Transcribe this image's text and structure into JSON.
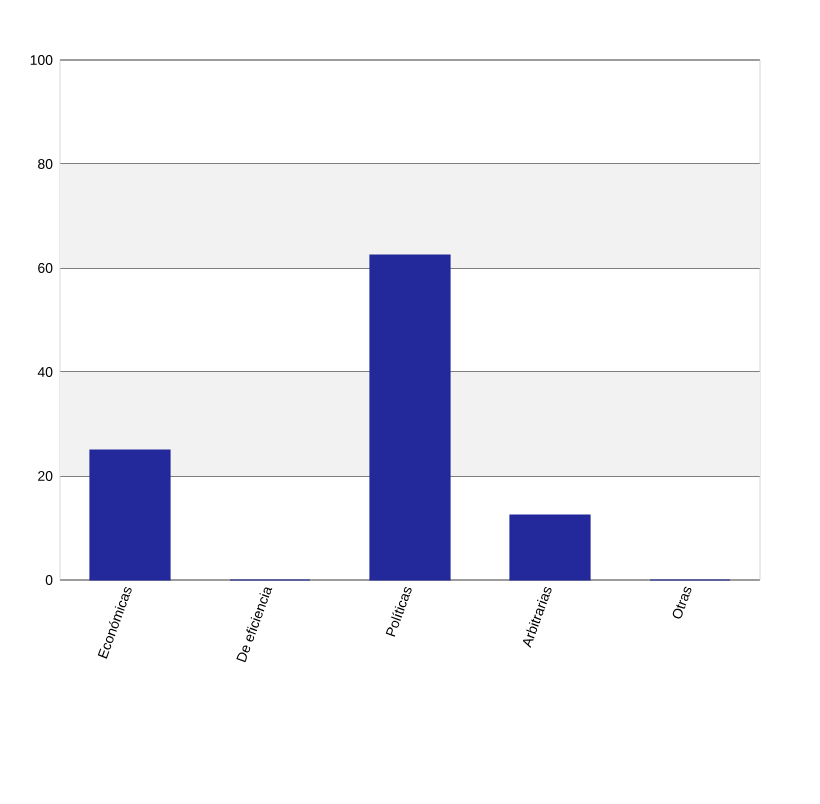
{
  "chart_data": {
    "type": "bar",
    "categories": [
      "Económicas",
      "De eficiencia",
      "Políticas",
      "Arbitrarias",
      "Otras"
    ],
    "values": [
      25,
      0,
      62.5,
      12.5,
      0
    ],
    "color": "#23289a",
    "ylim": [
      0,
      100
    ],
    "yticks": [
      0,
      20,
      40,
      60,
      80,
      100
    ],
    "grid": "y"
  }
}
